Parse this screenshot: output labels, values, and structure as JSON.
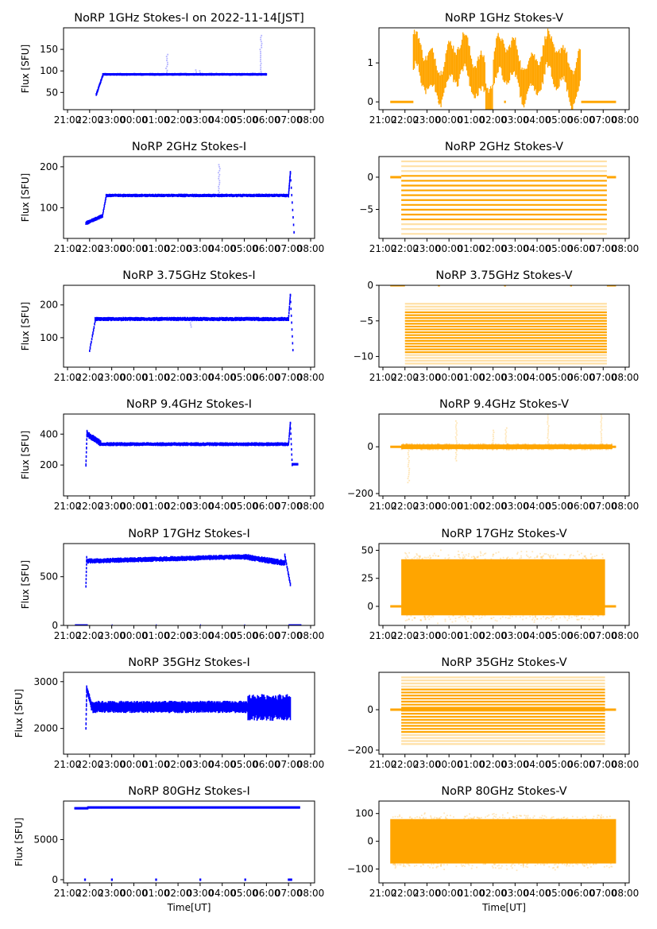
{
  "colors": {
    "stokes_i": "#0000ff",
    "stokes_v": "#ffa500",
    "axes": "#000000"
  },
  "chart_data": [
    {
      "type": "scatter",
      "panel": "1GHz-I",
      "title": "NoRP 1GHz Stokes-I on 2022-11-14[JST]",
      "ylabel": "Flux [SFU]",
      "xlabel": "",
      "series_color": "stokes_i",
      "ylim": [
        10,
        200
      ],
      "yticks": [
        50,
        100,
        150
      ],
      "ytick_labels": [
        "50",
        "100",
        "150"
      ],
      "segments": [
        {
          "start": "22:18",
          "end": "22:36",
          "from": 45,
          "to": 90,
          "spread": 4
        },
        {
          "start": "22:36",
          "end": "06:00",
          "level": 92,
          "spread": 3
        }
      ],
      "spikes": [
        {
          "time": "01:30",
          "peak": 138
        },
        {
          "time": "05:45",
          "peak": 182
        },
        {
          "time": "02:50",
          "peak": 102
        },
        {
          "time": "03:00",
          "peak": 100
        }
      ]
    },
    {
      "type": "scatter",
      "panel": "1GHz-V",
      "title": "NoRP 1GHz Stokes-V",
      "ylabel": "",
      "xlabel": "",
      "series_color": "stokes_v",
      "ylim": [
        -0.2,
        1.9
      ],
      "yticks": [
        0,
        1
      ],
      "ytick_labels": [
        "0",
        "1"
      ],
      "zero_segments": [
        [
          "21:20",
          "22:23"
        ],
        [
          "23:30",
          "23:35"
        ],
        [
          "02:30",
          "02:35"
        ],
        [
          "05:30",
          "05:35"
        ],
        [
          "06:00",
          "07:35"
        ]
      ],
      "band": {
        "start": "22:23",
        "end": "06:00",
        "center": 0.85,
        "half_width": 0.4,
        "noisy": true
      }
    },
    {
      "type": "scatter",
      "panel": "2GHz-I",
      "title": "NoRP 2GHz Stokes-I",
      "ylabel": "Flux [SFU]",
      "xlabel": "",
      "series_color": "stokes_i",
      "ylim": [
        25,
        225
      ],
      "yticks": [
        100,
        200
      ],
      "ytick_labels": [
        "100",
        "200"
      ],
      "segments": [
        {
          "start": "21:50",
          "end": "22:35",
          "from": 62,
          "to": 80,
          "spread": 5
        },
        {
          "start": "22:35",
          "end": "22:45",
          "from": 80,
          "to": 128,
          "spread": 4
        },
        {
          "start": "22:45",
          "end": "07:00",
          "level": 130,
          "spread": 4
        },
        {
          "start": "07:00",
          "end": "07:05",
          "from": 130,
          "to": 185,
          "spread": 5
        },
        {
          "start": "07:05",
          "end": "07:15",
          "from": 185,
          "to": 40,
          "spread": 3
        }
      ],
      "spikes": [
        {
          "time": "03:52",
          "peak": 205
        }
      ]
    },
    {
      "type": "scatter",
      "panel": "2GHz-V",
      "title": "NoRP 2GHz Stokes-V",
      "ylabel": "",
      "xlabel": "",
      "series_color": "stokes_v",
      "ylim": [
        -9.5,
        3.2
      ],
      "yticks": [
        -5,
        0
      ],
      "ytick_labels": [
        "−5",
        "0"
      ],
      "zero_segments": [
        [
          "21:20",
          "21:50"
        ],
        [
          "07:10",
          "07:35"
        ]
      ],
      "band": {
        "start": "21:50",
        "end": "07:10",
        "low": -8.8,
        "high": 2.5,
        "quantized": 0.75
      }
    },
    {
      "type": "scatter",
      "panel": "3.75GHz-I",
      "title": "NoRP 3.75GHz Stokes-I",
      "ylabel": "Flux [SFU]",
      "xlabel": "",
      "series_color": "stokes_i",
      "ylim": [
        10,
        260
      ],
      "yticks": [
        100,
        200
      ],
      "ytick_labels": [
        "100",
        "200"
      ],
      "segments": [
        {
          "start": "22:00",
          "end": "22:15",
          "from": 60,
          "to": 150,
          "spread": 5
        },
        {
          "start": "22:15",
          "end": "07:00",
          "level": 157,
          "spread": 6
        },
        {
          "start": "07:00",
          "end": "07:05",
          "from": 157,
          "to": 230,
          "spread": 5
        },
        {
          "start": "07:05",
          "end": "07:12",
          "from": 230,
          "to": 62,
          "spread": 3
        }
      ],
      "spikes": [
        {
          "time": "02:35",
          "peak": 130
        }
      ]
    },
    {
      "type": "scatter",
      "panel": "3.75GHz-V",
      "title": "NoRP 3.75GHz Stokes-V",
      "ylabel": "",
      "xlabel": "",
      "series_color": "stokes_v",
      "ylim": [
        -11.5,
        0
      ],
      "yticks": [
        -10,
        -5,
        0
      ],
      "ytick_labels": [
        "−10",
        "−5",
        "0"
      ],
      "zero_segments": [
        [
          "21:20",
          "22:00"
        ],
        [
          "23:30",
          "23:35"
        ],
        [
          "02:30",
          "02:35"
        ],
        [
          "05:30",
          "05:35"
        ],
        [
          "07:10",
          "07:35"
        ]
      ],
      "band": {
        "start": "22:00",
        "end": "07:10",
        "low": -11,
        "high": -2.5,
        "quantized": 0.4
      }
    },
    {
      "type": "scatter",
      "panel": "9.4GHz-I",
      "title": "NoRP 9.4GHz Stokes-I",
      "ylabel": "Flux [SFU]",
      "xlabel": "",
      "series_color": "stokes_i",
      "ylim": [
        0,
        530
      ],
      "yticks": [
        200,
        400
      ],
      "ytick_labels": [
        "200",
        "400"
      ],
      "segments": [
        {
          "start": "21:50",
          "end": "21:53",
          "from": 200,
          "to": 420,
          "spread": 10
        },
        {
          "start": "21:53",
          "end": "22:30",
          "from": 400,
          "to": 340,
          "spread": 20
        },
        {
          "start": "22:30",
          "end": "07:00",
          "level": 335,
          "spread": 12
        },
        {
          "start": "07:00",
          "end": "07:05",
          "from": 335,
          "to": 470,
          "spread": 10
        },
        {
          "start": "07:05",
          "end": "07:10",
          "from": 470,
          "to": 200,
          "spread": 5
        },
        {
          "start": "07:10",
          "end": "07:25",
          "level": 205,
          "spread": 4
        }
      ]
    },
    {
      "type": "scatter",
      "panel": "9.4GHz-V",
      "title": "NoRP 9.4GHz Stokes-V",
      "ylabel": "",
      "xlabel": "",
      "series_color": "stokes_v",
      "ylim": [
        -210,
        140
      ],
      "yticks": [
        -200,
        0
      ],
      "ytick_labels": [
        "−200",
        "0"
      ],
      "zero_segments": [
        [
          "21:20",
          "07:35"
        ]
      ],
      "band": {
        "start": "21:50",
        "end": "07:25",
        "center": 0,
        "half_width": 10
      },
      "spikes": [
        {
          "time": "22:10",
          "peak": -160
        },
        {
          "time": "00:20",
          "peak": -60
        },
        {
          "time": "00:20",
          "peak": 110
        },
        {
          "time": "02:00",
          "peak": 70
        },
        {
          "time": "02:35",
          "peak": 80
        },
        {
          "time": "04:30",
          "peak": 140
        },
        {
          "time": "06:55",
          "peak": 140
        }
      ]
    },
    {
      "type": "scatter",
      "panel": "17GHz-I",
      "title": "NoRP 17GHz Stokes-I",
      "ylabel": "Flux [SFU]",
      "xlabel": "",
      "series_color": "stokes_i",
      "ylim": [
        0,
        840
      ],
      "yticks": [
        0,
        500
      ],
      "ytick_labels": [
        "0",
        "500"
      ],
      "zero_segments": [
        [
          "21:20",
          "21:55"
        ],
        [
          "23:00",
          "23:02"
        ],
        [
          "01:00",
          "01:02"
        ],
        [
          "03:00",
          "03:02"
        ],
        [
          "05:00",
          "05:02"
        ],
        [
          "07:00",
          "07:35"
        ]
      ],
      "segments": [
        {
          "start": "21:50",
          "end": "21:52",
          "from": 400,
          "to": 700,
          "spread": 10
        },
        {
          "start": "21:52",
          "end": "05:00",
          "from": 660,
          "to": 705,
          "spread": 25
        },
        {
          "start": "05:00",
          "end": "06:50",
          "from": 705,
          "to": 640,
          "spread": 30
        },
        {
          "start": "06:50",
          "end": "07:05",
          "from": 720,
          "to": 420,
          "spread": 20
        }
      ]
    },
    {
      "type": "scatter",
      "panel": "17GHz-V",
      "title": "NoRP 17GHz Stokes-V",
      "ylabel": "",
      "xlabel": "",
      "series_color": "stokes_v",
      "ylim": [
        -17,
        56
      ],
      "yticks": [
        0,
        25,
        50
      ],
      "ytick_labels": [
        "0",
        "25",
        "50"
      ],
      "zero_segments": [
        [
          "21:20",
          "07:35"
        ]
      ],
      "band": {
        "start": "21:50",
        "end": "07:05",
        "low": -8,
        "high": 42
      }
    },
    {
      "type": "scatter",
      "panel": "35GHz-I",
      "title": "NoRP 35GHz Stokes-I",
      "ylabel": "Flux [SFU]",
      "xlabel": "",
      "series_color": "stokes_i",
      "ylim": [
        1450,
        3200
      ],
      "yticks": [
        2000,
        3000
      ],
      "ytick_labels": [
        "2000",
        "3000"
      ],
      "segments": [
        {
          "start": "21:50",
          "end": "21:52",
          "from": 2000,
          "to": 2800,
          "spread": 40
        },
        {
          "start": "21:52",
          "end": "22:05",
          "from": 2850,
          "to": 2500,
          "spread": 80
        },
        {
          "start": "22:05",
          "end": "05:10",
          "level": 2460,
          "spread": 120
        },
        {
          "start": "05:10",
          "end": "07:05",
          "level": 2450,
          "spread": 260
        }
      ]
    },
    {
      "type": "scatter",
      "panel": "35GHz-V",
      "title": "NoRP 35GHz Stokes-V",
      "ylabel": "",
      "xlabel": "",
      "series_color": "stokes_v",
      "ylim": [
        -220,
        185
      ],
      "yticks": [
        -200,
        0
      ],
      "ytick_labels": [
        "−200",
        "0"
      ],
      "zero_segments": [
        [
          "21:20",
          "07:35"
        ]
      ],
      "band": {
        "start": "21:50",
        "end": "07:05",
        "low": -170,
        "high": 160,
        "quantized": 15
      }
    },
    {
      "type": "scatter",
      "panel": "80GHz-I",
      "title": "NoRP 80GHz Stokes-I",
      "ylabel": "Flux [SFU]",
      "xlabel": "Time[UT]",
      "series_color": "stokes_i",
      "ylim": [
        -400,
        9800
      ],
      "yticks": [
        0,
        5000
      ],
      "ytick_labels": [
        "0",
        "5000"
      ],
      "zero_segments": [
        [
          "21:45",
          "21:50"
        ],
        [
          "22:58",
          "23:03"
        ],
        [
          "00:58",
          "01:03"
        ],
        [
          "02:58",
          "03:03"
        ],
        [
          "05:00",
          "05:05"
        ],
        [
          "06:58",
          "07:10"
        ]
      ],
      "segments": [
        {
          "start": "21:20",
          "end": "21:55",
          "level": 8900,
          "spread": 80
        },
        {
          "start": "21:55",
          "end": "07:30",
          "level": 9000,
          "spread": 100
        }
      ]
    },
    {
      "type": "scatter",
      "panel": "80GHz-V",
      "title": "NoRP 80GHz Stokes-V",
      "ylabel": "",
      "xlabel": "Time[UT]",
      "series_color": "stokes_v",
      "ylim": [
        -150,
        145
      ],
      "yticks": [
        -100,
        0,
        100
      ],
      "ytick_labels": [
        "−100",
        "0",
        "100"
      ],
      "band": {
        "start": "21:20",
        "end": "07:35",
        "low": -80,
        "high": 80
      }
    }
  ],
  "x_axis": {
    "range": [
      "21:00",
      "08:00"
    ],
    "ticks": [
      "21:00",
      "22:00",
      "23:00",
      "00:00",
      "01:00",
      "02:00",
      "03:00",
      "04:00",
      "05:00",
      "06:00",
      "07:00",
      "08:00"
    ]
  }
}
